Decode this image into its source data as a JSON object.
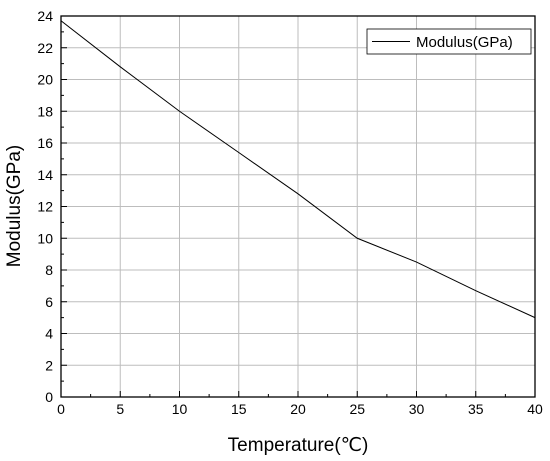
{
  "chart_data": {
    "type": "line",
    "title": "",
    "xlabel": "Temperature(℃)",
    "ylabel": "Modulus(GPa)",
    "xlim": [
      0,
      40
    ],
    "ylim": [
      0,
      24
    ],
    "xticks": [
      0,
      5,
      10,
      15,
      20,
      25,
      30,
      35,
      40
    ],
    "yticks": [
      0,
      2,
      4,
      6,
      8,
      10,
      12,
      14,
      16,
      18,
      20,
      22,
      24
    ],
    "grid": true,
    "legend_position": "top-right",
    "series": [
      {
        "name": "Modulus(GPa)",
        "color": "#000000",
        "x": [
          0,
          5,
          10,
          15,
          20,
          25,
          30,
          35,
          40
        ],
        "y": [
          23.7,
          20.8,
          18.0,
          15.4,
          12.8,
          10.0,
          8.5,
          6.7,
          5.0
        ]
      }
    ]
  }
}
